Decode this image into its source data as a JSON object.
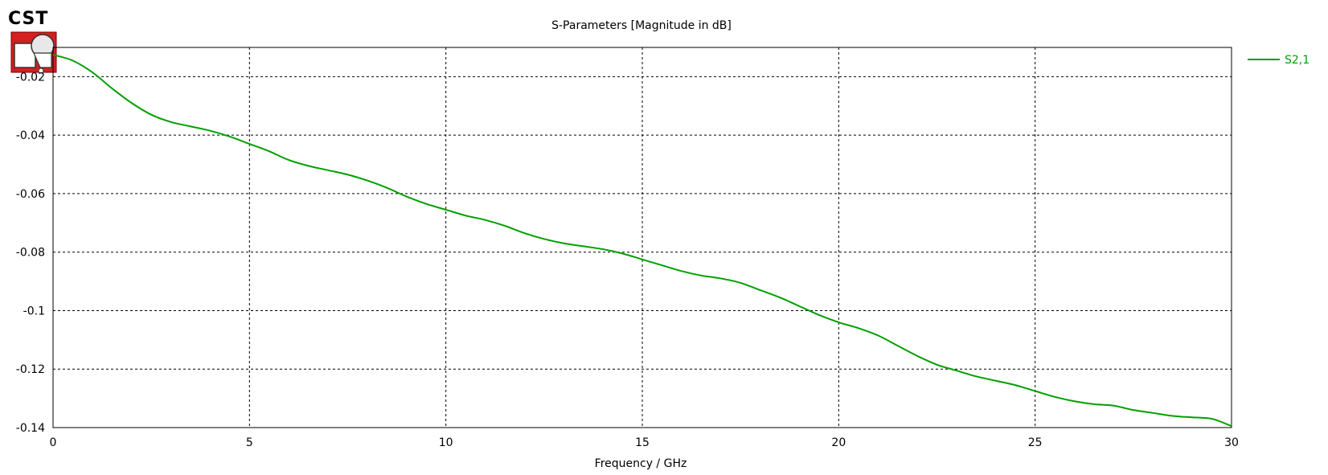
{
  "logo": {
    "text": "CST"
  },
  "chart_data": {
    "type": "line",
    "title": "S-Parameters [Magnitude in dB]",
    "xlabel": "Frequency / GHz",
    "ylabel": "",
    "xlim": [
      0,
      30
    ],
    "ylim": [
      -0.14,
      -0.01
    ],
    "xticks": [
      0,
      5,
      10,
      15,
      20,
      25,
      30
    ],
    "yticks": [
      -0.02,
      -0.04,
      -0.06,
      -0.08,
      -0.1,
      -0.12,
      -0.14
    ],
    "ytick_labels": [
      "-0.02",
      "-0.04",
      "-0.06",
      "-0.08",
      "-0.1",
      "-0.12",
      "-0.14"
    ],
    "grid": true,
    "legend_position": "top-right",
    "series": [
      {
        "name": "S2,1",
        "color": "#00a000",
        "x": [
          0,
          0.5,
          1,
          1.5,
          2,
          2.5,
          3,
          3.5,
          4,
          4.5,
          5,
          5.5,
          6,
          6.5,
          7,
          7.5,
          8,
          8.5,
          9,
          9.5,
          10,
          10.5,
          11,
          11.5,
          12,
          12.5,
          13,
          13.5,
          14,
          14.5,
          15,
          15.5,
          16,
          16.5,
          17,
          17.5,
          18,
          18.5,
          19,
          19.5,
          20,
          20.5,
          21,
          21.5,
          22,
          22.5,
          23,
          23.5,
          24,
          24.5,
          25,
          25.5,
          26,
          26.5,
          27,
          27.5,
          28,
          28.5,
          29,
          29.5,
          30
        ],
        "y": [
          -0.0125,
          -0.0145,
          -0.0185,
          -0.024,
          -0.029,
          -0.033,
          -0.0355,
          -0.037,
          -0.0385,
          -0.0405,
          -0.043,
          -0.0455,
          -0.0485,
          -0.0505,
          -0.052,
          -0.0535,
          -0.0555,
          -0.058,
          -0.061,
          -0.0635,
          -0.0655,
          -0.0675,
          -0.069,
          -0.071,
          -0.0735,
          -0.0755,
          -0.077,
          -0.078,
          -0.079,
          -0.0805,
          -0.0825,
          -0.0845,
          -0.0865,
          -0.088,
          -0.089,
          -0.0905,
          -0.093,
          -0.0955,
          -0.0985,
          -0.1015,
          -0.104,
          -0.106,
          -0.1085,
          -0.112,
          -0.1155,
          -0.1185,
          -0.1205,
          -0.1225,
          -0.124,
          -0.1255,
          -0.1275,
          -0.1295,
          -0.131,
          -0.132,
          -0.1325,
          -0.134,
          -0.135,
          -0.136,
          -0.1365,
          -0.137,
          -0.1395
        ]
      }
    ]
  }
}
